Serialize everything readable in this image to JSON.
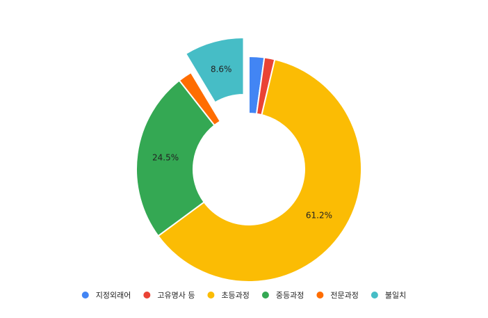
{
  "chart_data": {
    "type": "pie",
    "style": "donut",
    "title": "",
    "categories": [
      "지정외래어",
      "고유명사 등",
      "초등과정",
      "중등과정",
      "전문과정",
      "불일치"
    ],
    "values": [
      2.2,
      1.5,
      61.2,
      24.5,
      2.0,
      8.6
    ],
    "value_labels": [
      "",
      "",
      "61.2%",
      "24.5%",
      "",
      "8.6%"
    ],
    "exploded": [
      false,
      false,
      false,
      false,
      false,
      true
    ],
    "colors": [
      "#4285F4",
      "#EA4335",
      "#FBBC04",
      "#34A853",
      "#FF6D01",
      "#46BDC6"
    ],
    "legend_position": "bottom",
    "grid": false
  }
}
